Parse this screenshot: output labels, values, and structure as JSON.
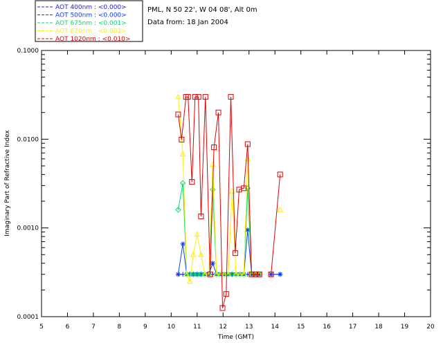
{
  "header": {
    "site": "PML, N 50 22', W 04 08', Alt 0m",
    "date": "Data from: 18 Jan 2004"
  },
  "chart_data": {
    "type": "line",
    "xlabel": "Time (GMT)",
    "ylabel": "Imaginary Part of Refractive Index",
    "xlim": [
      5,
      20
    ],
    "ylim": [
      0.0001,
      0.1
    ],
    "yscale": "log",
    "x_ticks": [
      "5",
      "6",
      "7",
      "8",
      "9",
      "10",
      "11",
      "12",
      "13",
      "14",
      "15",
      "16",
      "17",
      "18",
      "19",
      "20"
    ],
    "y_ticks": [
      "0.0001",
      "0.0010",
      "0.0100",
      "0.1000"
    ],
    "legend_placement": "top-left",
    "series": [
      {
        "name": "AOT  400nm : <0.000>",
        "color": "#2222cc",
        "marker": "plus",
        "x": [
          10.27,
          10.45,
          10.6,
          10.72,
          10.85,
          11.0,
          11.15,
          11.3,
          11.45,
          11.6,
          11.75,
          11.9,
          12.05,
          12.2,
          12.35,
          12.5,
          12.65,
          12.8,
          12.95,
          13.1,
          13.25,
          13.4,
          13.85,
          14.2
        ],
        "y": [
          0.0003,
          0.0003,
          0.0003,
          0.0003,
          0.0003,
          0.0003,
          0.0003,
          0.0003,
          0.0003,
          0.0003,
          0.0003,
          0.0003,
          0.0003,
          0.0003,
          0.0003,
          0.0003,
          0.0003,
          0.0003,
          0.0003,
          0.0003,
          0.0003,
          0.0003,
          0.0003,
          0.0003
        ]
      },
      {
        "name": "AOT  500nm : <0.000>",
        "color": "#0a3cff",
        "marker": "asterisk",
        "x": [
          10.27,
          10.45,
          10.6,
          10.72,
          10.85,
          11.0,
          11.15,
          11.3,
          11.45,
          11.6,
          11.75,
          11.9,
          12.05,
          12.2,
          12.35,
          12.5,
          12.65,
          12.8,
          12.95,
          13.1,
          13.25,
          13.4,
          13.85,
          14.2
        ],
        "y": [
          0.0003,
          0.00066,
          0.0003,
          0.0003,
          0.0003,
          0.0003,
          0.0003,
          0.0003,
          0.0003,
          0.0004,
          0.0003,
          0.0003,
          0.0003,
          0.0003,
          0.0003,
          0.0003,
          0.0003,
          0.0003,
          0.00095,
          0.0003,
          0.0003,
          0.0003,
          0.0003,
          0.0003
        ]
      },
      {
        "name": "AOT  675nm : <0.001>",
        "color": "#00dd66",
        "marker": "diamond",
        "x": [
          10.27,
          10.45,
          10.6,
          10.72,
          10.85,
          11.0,
          11.15,
          11.3,
          11.45,
          11.6,
          11.75,
          11.9,
          12.05,
          12.2,
          12.35,
          12.5,
          12.65,
          12.8,
          12.95,
          13.1,
          13.25,
          13.4
        ],
        "y": [
          0.0016,
          0.0032,
          0.0003,
          0.0003,
          0.0003,
          0.0003,
          0.0003,
          0.0003,
          0.0003,
          0.0027,
          0.0003,
          0.0003,
          0.0003,
          0.0003,
          0.0003,
          0.0003,
          0.0003,
          0.0003,
          0.0028,
          0.0003,
          0.0003,
          0.0003
        ]
      },
      {
        "name": "AOT  870nm : <0.002>",
        "color": "#ffee00",
        "marker": "triangle",
        "x": [
          10.27,
          10.45,
          10.6,
          10.72,
          10.85,
          11.0,
          11.15,
          11.3,
          11.45,
          11.6,
          11.75,
          11.9,
          12.05,
          12.2,
          12.35,
          12.5,
          12.65,
          12.8,
          12.95,
          13.1,
          13.25,
          13.4,
          14.2
        ],
        "y": [
          0.03,
          0.0068,
          0.0003,
          0.00025,
          0.0005,
          0.00085,
          0.0005,
          0.0003,
          0.0003,
          0.0052,
          0.0003,
          0.0003,
          0.0003,
          0.0003,
          0.0026,
          0.0003,
          0.0003,
          0.0003,
          0.006,
          0.0003,
          0.0003,
          0.0003,
          0.0016
        ]
      },
      {
        "name": "AOT 1020nm : <0.010>",
        "color": "#dd0000",
        "marker": "square",
        "x": [
          10.27,
          10.4,
          10.57,
          10.65,
          10.8,
          10.92,
          11.05,
          11.15,
          11.32,
          11.5,
          11.65,
          11.82,
          11.98,
          12.12,
          12.3,
          12.47,
          12.62,
          12.8,
          12.95,
          13.1,
          13.25,
          13.4,
          13.85,
          14.2
        ],
        "y": [
          0.019,
          0.0099,
          0.03,
          0.03,
          0.0033,
          0.03,
          0.03,
          0.00135,
          0.03,
          0.0003,
          0.0081,
          0.02,
          0.000125,
          0.00018,
          0.03,
          0.00052,
          0.0027,
          0.0028,
          0.0088,
          0.0003,
          0.0003,
          0.0003,
          0.0003,
          0.004
        ],
        "breaks_after": [
          21
        ]
      }
    ]
  }
}
